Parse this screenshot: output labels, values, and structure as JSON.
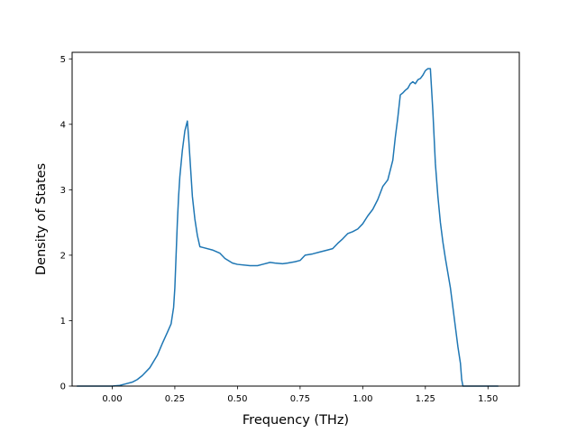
{
  "chart_data": {
    "type": "line",
    "title": "",
    "xlabel": "Frequency (THz)",
    "ylabel": "Density of States",
    "xlim": [
      -0.16,
      1.625
    ],
    "ylim": [
      0,
      5.1
    ],
    "grid": false,
    "xticks": [
      0.0,
      0.25,
      0.5,
      0.75,
      1.0,
      1.25,
      1.5
    ],
    "xtick_labels": [
      "0.00",
      "0.25",
      "0.50",
      "0.75",
      "1.00",
      "1.25",
      "1.50"
    ],
    "yticks": [
      0,
      1,
      2,
      3,
      4,
      5
    ],
    "ytick_labels": [
      "0",
      "1",
      "2",
      "3",
      "4",
      "5"
    ],
    "colors": {
      "line": "#1f77b4"
    },
    "series": [
      {
        "x": [
          -0.14,
          0.0,
          0.03,
          0.05,
          0.08,
          0.1,
          0.12,
          0.15,
          0.18,
          0.2,
          0.22,
          0.235,
          0.245,
          0.25,
          0.255,
          0.26,
          0.265,
          0.27,
          0.28,
          0.29,
          0.3,
          0.305,
          0.31,
          0.32,
          0.33,
          0.34,
          0.35,
          0.36,
          0.4,
          0.43,
          0.45,
          0.48,
          0.5,
          0.55,
          0.58,
          0.6,
          0.63,
          0.65,
          0.68,
          0.7,
          0.73,
          0.75,
          0.77,
          0.8,
          0.83,
          0.86,
          0.88,
          0.9,
          0.92,
          0.94,
          0.96,
          0.98,
          1.0,
          1.02,
          1.04,
          1.06,
          1.08,
          1.1,
          1.12,
          1.13,
          1.14,
          1.15,
          1.16,
          1.17,
          1.18,
          1.19,
          1.2,
          1.21,
          1.22,
          1.23,
          1.24,
          1.25,
          1.26,
          1.27,
          1.28,
          1.29,
          1.3,
          1.31,
          1.32,
          1.33,
          1.35,
          1.37,
          1.38,
          1.39,
          1.395,
          1.4,
          1.45,
          1.54
        ],
        "y": [
          0.0,
          0.0,
          0.01,
          0.03,
          0.06,
          0.1,
          0.16,
          0.28,
          0.47,
          0.65,
          0.82,
          0.95,
          1.2,
          1.5,
          2.0,
          2.5,
          2.9,
          3.2,
          3.6,
          3.9,
          4.05,
          3.8,
          3.5,
          2.9,
          2.55,
          2.3,
          2.13,
          2.12,
          2.08,
          2.03,
          1.95,
          1.88,
          1.86,
          1.84,
          1.84,
          1.86,
          1.89,
          1.88,
          1.87,
          1.88,
          1.9,
          1.92,
          2.0,
          2.02,
          2.05,
          2.08,
          2.1,
          2.18,
          2.25,
          2.33,
          2.36,
          2.4,
          2.48,
          2.6,
          2.7,
          2.85,
          3.05,
          3.15,
          3.45,
          3.8,
          4.1,
          4.45,
          4.48,
          4.52,
          4.55,
          4.62,
          4.65,
          4.62,
          4.68,
          4.7,
          4.75,
          4.82,
          4.85,
          4.85,
          4.2,
          3.4,
          2.9,
          2.5,
          2.2,
          1.95,
          1.5,
          0.9,
          0.6,
          0.35,
          0.1,
          0.0,
          0.0,
          0.0
        ]
      }
    ]
  }
}
